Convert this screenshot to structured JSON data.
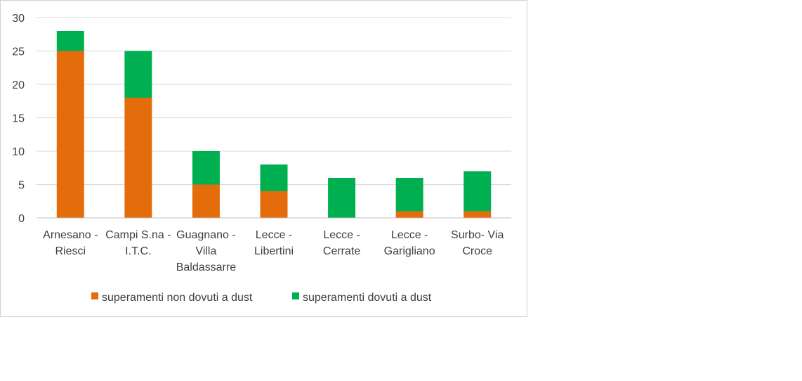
{
  "chart_data": {
    "type": "bar",
    "stacked": true,
    "categories": [
      [
        "Arnesano -",
        "Riesci"
      ],
      [
        "Campi S.na -",
        "I.T.C."
      ],
      [
        "Guagnano -",
        "Villa",
        "Baldassarre"
      ],
      [
        "Lecce -",
        "Libertini"
      ],
      [
        "Lecce -",
        "Cerrate"
      ],
      [
        "Lecce -",
        "Garigliano"
      ],
      [
        "Surbo- Via",
        "Croce"
      ]
    ],
    "series": [
      {
        "name": "superamenti non dovuti a dust",
        "color": "#E46C0A",
        "values": [
          25,
          18,
          5,
          4,
          0,
          1,
          1
        ]
      },
      {
        "name": "superamenti dovuti a dust",
        "color": "#00B050",
        "values": [
          3,
          7,
          5,
          4,
          6,
          5,
          6
        ]
      }
    ],
    "ylim": [
      0,
      30
    ],
    "yticks": [
      0,
      5,
      10,
      15,
      20,
      25,
      30
    ],
    "grid": true,
    "legend_position": "bottom",
    "gridline_color": "#D9D9D9",
    "axis_color": "#BFBFBF"
  }
}
